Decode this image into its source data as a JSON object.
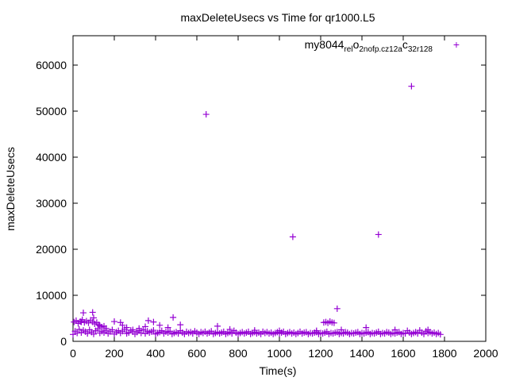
{
  "chart_data": {
    "type": "scatter",
    "title": "maxDeleteUsecs vs Time for qr1000.L5",
    "xlabel": "Time(s)",
    "ylabel": "maxDeleteUsecs",
    "xlim": [
      0,
      2000
    ],
    "ylim": [
      0,
      66000
    ],
    "xticks": [
      "0",
      "200",
      "400",
      "600",
      "800",
      "1000",
      "1200",
      "1400",
      "1600",
      "1800",
      "2000"
    ],
    "yticks": [
      "0",
      "10000",
      "20000",
      "30000",
      "40000",
      "50000",
      "60000"
    ],
    "legend_position": "top-right",
    "marker": "plus",
    "series": [
      {
        "name": "my8044_rel_o2nofp.cz12a_c32r128",
        "legend_parts": [
          "my8044",
          "rel",
          "o",
          "2nofp.cz12a",
          "c",
          "32r128"
        ],
        "color": "#9400d3",
        "x_start": 0,
        "x_step": 10,
        "band_values": [
          1500,
          2200,
          1800,
          2600,
          1900,
          2400,
          2100,
          1700,
          2500,
          2000,
          1600,
          2300,
          2700,
          1800,
          2200,
          1900,
          2400,
          1700,
          2100,
          2500,
          1600,
          2000,
          2300,
          1800,
          2200,
          2600,
          1700,
          1900,
          2400,
          2100,
          1600,
          2000,
          2300,
          1800,
          2500,
          1700,
          2200,
          1900,
          2100,
          2400,
          1600,
          1800,
          2000,
          2300,
          1700,
          2100,
          1900,
          2200,
          1600,
          1800,
          2000,
          1700,
          2300,
          1900,
          1600,
          2100,
          1800,
          2000,
          1700,
          2200,
          1900,
          1600,
          2000,
          1800,
          2100,
          1700,
          1900,
          2200,
          1600,
          1800,
          2000,
          1700,
          1900,
          2100,
          1600,
          1800,
          2000,
          1700,
          2300,
          1900,
          1600,
          1800,
          2000,
          1700,
          1900,
          2100,
          1600,
          1800,
          2000,
          1700,
          1900,
          1600,
          2100,
          1800,
          2000,
          1700,
          1900,
          1600,
          1800,
          2000,
          1700,
          1900,
          2100,
          1600,
          1800,
          2000,
          1700,
          1900,
          1600,
          1800,
          2100,
          1700,
          1900,
          2000,
          1600,
          1800,
          1700,
          1900,
          2000,
          1600,
          1800,
          1700,
          1900,
          2100,
          1600,
          1800,
          1700,
          1900,
          2000,
          1600,
          1800,
          1700,
          2000,
          1900,
          1600,
          1800,
          1700,
          1900,
          2000,
          1600,
          1800,
          1700,
          1900,
          2000,
          1600,
          1800,
          1700,
          1900,
          2100,
          1600,
          1800,
          1700,
          2000,
          1900,
          1600,
          1800,
          1700,
          1900,
          2000,
          1600,
          1800,
          1700,
          2300,
          1900,
          1600,
          1800,
          2000,
          1700,
          2400,
          1900,
          1600,
          2200,
          1800,
          2000,
          1700,
          1900,
          1600,
          1800,
          1500
        ],
        "extra_points": [
          [
            5,
            4200
          ],
          [
            15,
            4500
          ],
          [
            25,
            3900
          ],
          [
            35,
            4300
          ],
          [
            45,
            4700
          ],
          [
            55,
            4100
          ],
          [
            65,
            4400
          ],
          [
            75,
            4000
          ],
          [
            85,
            4600
          ],
          [
            95,
            4200
          ],
          [
            105,
            3800
          ],
          [
            115,
            4100
          ],
          [
            125,
            3600
          ],
          [
            140,
            3100
          ],
          [
            160,
            2800
          ],
          [
            40,
            4200
          ],
          [
            50,
            6200
          ],
          [
            95,
            6300
          ],
          [
            100,
            5100
          ],
          [
            130,
            3400
          ],
          [
            150,
            3300
          ],
          [
            200,
            4300
          ],
          [
            230,
            4100
          ],
          [
            240,
            3500
          ],
          [
            260,
            3000
          ],
          [
            290,
            2500
          ],
          [
            320,
            2800
          ],
          [
            350,
            3200
          ],
          [
            365,
            4500
          ],
          [
            390,
            4200
          ],
          [
            420,
            3500
          ],
          [
            460,
            3000
          ],
          [
            485,
            5200
          ],
          [
            520,
            3600
          ],
          [
            700,
            3300
          ],
          [
            760,
            2600
          ],
          [
            880,
            2400
          ],
          [
            1000,
            2300
          ],
          [
            1180,
            2300
          ],
          [
            1215,
            4100
          ],
          [
            1225,
            4200
          ],
          [
            1235,
            4000
          ],
          [
            1245,
            4300
          ],
          [
            1255,
            4100
          ],
          [
            1265,
            4000
          ],
          [
            1280,
            7100
          ],
          [
            1300,
            2500
          ],
          [
            1420,
            3000
          ],
          [
            1560,
            2500
          ],
          [
            1720,
            2500
          ],
          [
            645,
            49300
          ],
          [
            1065,
            22700
          ],
          [
            1480,
            23200
          ],
          [
            1640,
            55400
          ]
        ]
      }
    ]
  }
}
